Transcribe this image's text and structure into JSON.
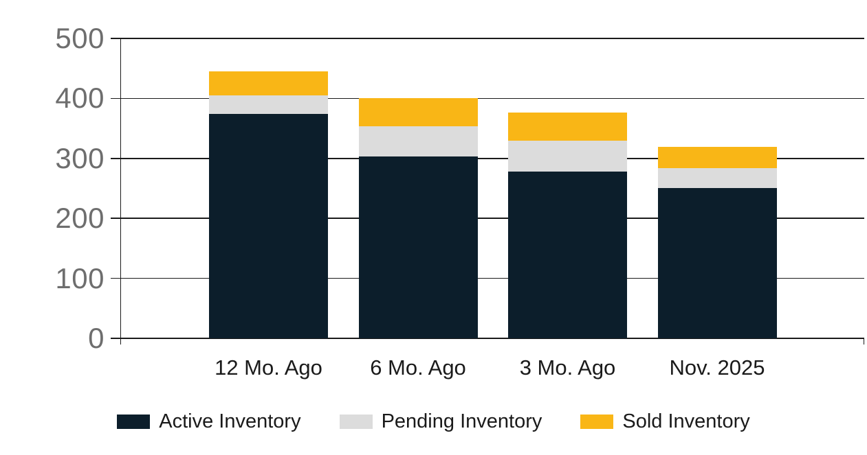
{
  "chart_data": {
    "type": "bar",
    "stacked": true,
    "title": "",
    "xlabel": "",
    "ylabel": "",
    "categories": [
      "12 Mo. Ago",
      "6 Mo. Ago",
      "3 Mo. Ago",
      "Nov. 2025"
    ],
    "series": [
      {
        "name": "Active Inventory",
        "color": "#0c1e2b",
        "values": [
          374,
          303,
          278,
          251
        ]
      },
      {
        "name": "Pending Inventory",
        "color": "#dcdcdc",
        "values": [
          31,
          50,
          51,
          33
        ]
      },
      {
        "name": "Sold Inventory",
        "color": "#f9b616",
        "values": [
          40,
          47,
          47,
          35
        ]
      }
    ],
    "stack_totals": [
      445,
      400,
      376,
      319
    ],
    "ylim": [
      0,
      500
    ],
    "y_ticks": [
      0,
      100,
      200,
      300,
      400,
      500
    ],
    "grid": true,
    "legend_position": "bottom"
  },
  "colors": {
    "background": "#ffffff",
    "grid_line": "#1a1a1a",
    "axis_tick_label": "#6e6e6e",
    "category_label": "#1a1a1a",
    "legend_text": "#1a1a1a"
  }
}
